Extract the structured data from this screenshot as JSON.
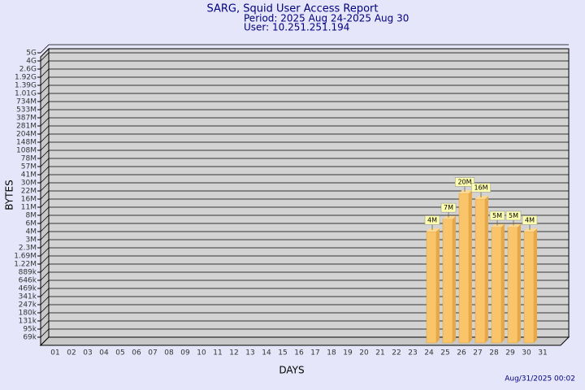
{
  "chart_data": {
    "type": "bar",
    "title": "SARG, Squid User Access Report",
    "subtitle": [
      "Period: 2025 Aug 24-2025 Aug 30",
      "User: 10.251.251.194"
    ],
    "xlabel": "DAYS",
    "ylabel": "BYTES",
    "footer": "Aug/31/2025 00:02",
    "categories": [
      "01",
      "02",
      "03",
      "04",
      "05",
      "06",
      "07",
      "08",
      "09",
      "10",
      "11",
      "12",
      "13",
      "14",
      "15",
      "16",
      "17",
      "18",
      "19",
      "20",
      "21",
      "22",
      "23",
      "24",
      "25",
      "26",
      "27",
      "28",
      "29",
      "30",
      "31"
    ],
    "values": [
      null,
      null,
      null,
      null,
      null,
      null,
      null,
      null,
      null,
      null,
      null,
      null,
      null,
      null,
      null,
      null,
      null,
      null,
      null,
      null,
      null,
      null,
      null,
      4000000,
      7000000,
      20000000,
      16000000,
      5000000,
      5000000,
      4000000,
      null
    ],
    "value_labels": [
      null,
      null,
      null,
      null,
      null,
      null,
      null,
      null,
      null,
      null,
      null,
      null,
      null,
      null,
      null,
      null,
      null,
      null,
      null,
      null,
      null,
      null,
      null,
      "4M",
      "7M",
      "20M",
      "16M",
      "5M",
      "5M",
      "4M",
      null
    ],
    "color": "#f9c46a",
    "ylim": [
      50000,
      5000000000
    ],
    "log": true,
    "grid": true,
    "yticks": [
      {
        "value": 69000,
        "label": "69k"
      },
      {
        "value": 95000,
        "label": "95k"
      },
      {
        "value": 131000,
        "label": "131k"
      },
      {
        "value": 180000,
        "label": "180k"
      },
      {
        "value": 247000,
        "label": "247k"
      },
      {
        "value": 341000,
        "label": "341k"
      },
      {
        "value": 469000,
        "label": "469k"
      },
      {
        "value": 646000,
        "label": "646k"
      },
      {
        "value": 889000,
        "label": "889k"
      },
      {
        "value": 1220000,
        "label": "1.22M"
      },
      {
        "value": 1690000,
        "label": "1.69M"
      },
      {
        "value": 2300000,
        "label": "2.3M"
      },
      {
        "value": 3000000,
        "label": "3M"
      },
      {
        "value": 4000000,
        "label": "4M"
      },
      {
        "value": 6000000,
        "label": "6M"
      },
      {
        "value": 8000000,
        "label": "8M"
      },
      {
        "value": 11000000,
        "label": "11M"
      },
      {
        "value": 16000000,
        "label": "16M"
      },
      {
        "value": 22000000,
        "label": "22M"
      },
      {
        "value": 30000000,
        "label": "30M"
      },
      {
        "value": 41000000,
        "label": "41M"
      },
      {
        "value": 57000000,
        "label": "57M"
      },
      {
        "value": 78000000,
        "label": "78M"
      },
      {
        "value": 108000000,
        "label": "108M"
      },
      {
        "value": 148000000,
        "label": "148M"
      },
      {
        "value": 204000000,
        "label": "204M"
      },
      {
        "value": 281000000,
        "label": "281M"
      },
      {
        "value": 387000000,
        "label": "387M"
      },
      {
        "value": 533000000,
        "label": "533M"
      },
      {
        "value": 734000000,
        "label": "734M"
      },
      {
        "value": 1010000000,
        "label": "1.01G"
      },
      {
        "value": 1390000000,
        "label": "1.39G"
      },
      {
        "value": 1920000000,
        "label": "1.92G"
      },
      {
        "value": 2600000000,
        "label": "2.6G"
      },
      {
        "value": 4000000000,
        "label": "4G"
      },
      {
        "value": 5000000000,
        "label": "5G"
      }
    ]
  }
}
